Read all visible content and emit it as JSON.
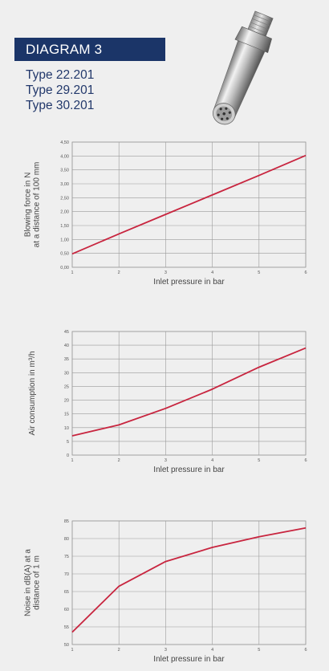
{
  "header": {
    "title": "DIAGRAM 3",
    "types": [
      "Type 22.201",
      "Type 29.201",
      "Type 30.201"
    ]
  },
  "colors": {
    "banner": "#1b3568",
    "line": "#c8253f",
    "grid": "#9a9a9a",
    "type_text": "#22386b"
  },
  "chart_data": [
    {
      "type": "line",
      "xlabel": "Inlet pressure in bar",
      "ylabel": [
        "Blowing force in N",
        "at a distance of 100 mm"
      ],
      "x_ticks": [
        "1",
        "2",
        "3",
        "4",
        "5",
        "6"
      ],
      "y_ticks": [
        "0,00",
        "0,50",
        "1,00",
        "1,50",
        "2,00",
        "2,50",
        "3,00",
        "3,50",
        "4,00",
        "4,50"
      ],
      "xlim": [
        1,
        6
      ],
      "ylim": [
        0,
        4.5
      ],
      "grid": true,
      "series": [
        {
          "x": [
            1,
            2,
            3,
            4,
            5,
            6
          ],
          "y": [
            0.48,
            1.2,
            1.9,
            2.6,
            3.3,
            4.02
          ]
        }
      ]
    },
    {
      "type": "line",
      "xlabel": "Inlet pressure in bar",
      "ylabel": [
        "Air consumption in m³/h"
      ],
      "x_ticks": [
        "1",
        "2",
        "3",
        "4",
        "5",
        "6"
      ],
      "y_ticks": [
        "0",
        "5",
        "10",
        "15",
        "20",
        "25",
        "30",
        "35",
        "40",
        "45"
      ],
      "xlim": [
        1,
        6
      ],
      "ylim": [
        0,
        45
      ],
      "grid": true,
      "series": [
        {
          "x": [
            1,
            2,
            3,
            4,
            5,
            6
          ],
          "y": [
            7,
            11,
            17,
            24,
            32,
            39
          ]
        }
      ]
    },
    {
      "type": "line",
      "xlabel": "Inlet pressure in bar",
      "ylabel": [
        "Noise in dB(A) at a",
        "distance of 1 m"
      ],
      "x_ticks": [
        "1",
        "2",
        "3",
        "4",
        "5",
        "6"
      ],
      "y_ticks": [
        "50",
        "55",
        "60",
        "65",
        "70",
        "75",
        "80",
        "85"
      ],
      "xlim": [
        1,
        6
      ],
      "ylim": [
        50,
        85
      ],
      "grid": true,
      "series": [
        {
          "x": [
            1,
            2,
            3,
            4,
            5,
            6
          ],
          "y": [
            53.5,
            66.5,
            73.5,
            77.5,
            80.5,
            83
          ]
        }
      ]
    }
  ]
}
